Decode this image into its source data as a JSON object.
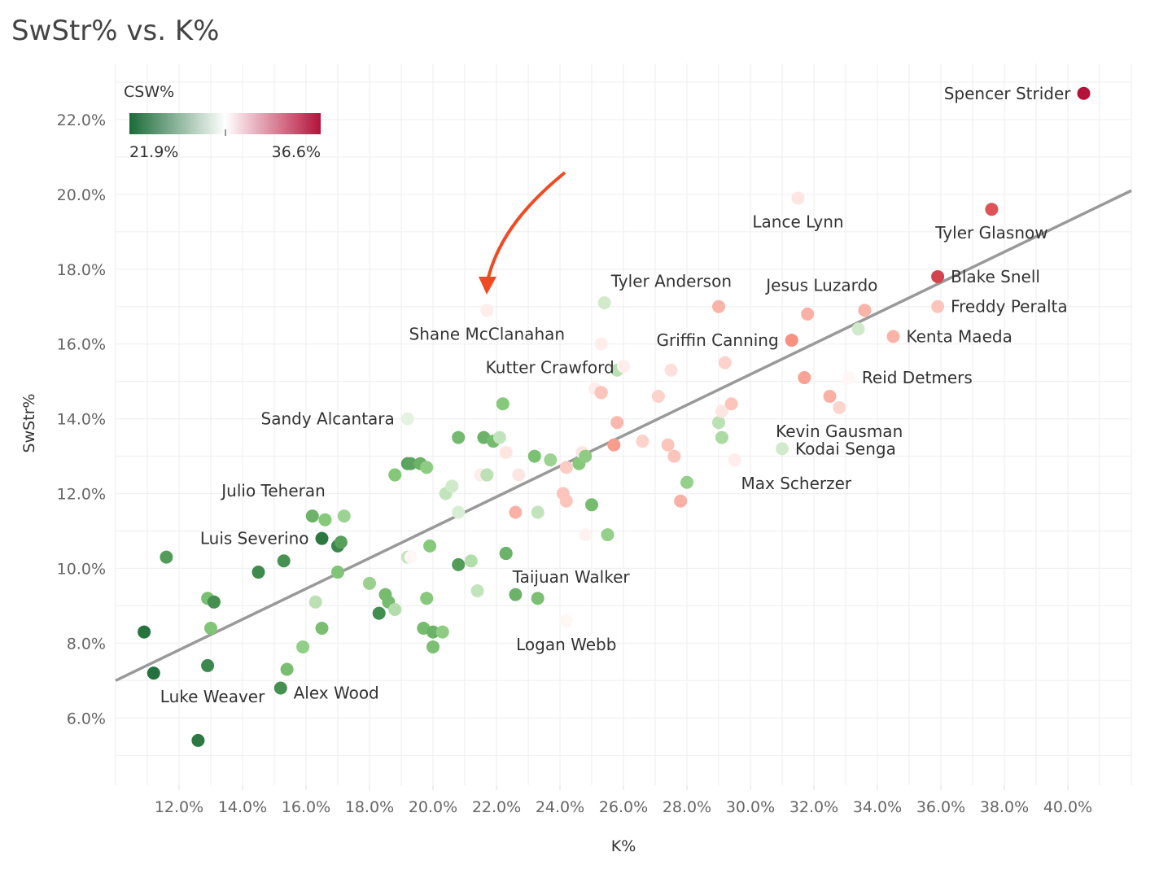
{
  "page_title": "SwStr% vs. K%",
  "chart_data": {
    "type": "scatter",
    "title": "SwStr% vs. K%",
    "xlabel": "K%",
    "ylabel": "SwStr%",
    "xlim": [
      10.0,
      42.0
    ],
    "ylim": [
      4.2,
      23.5
    ],
    "x_ticks": [
      12,
      14,
      16,
      18,
      20,
      22,
      24,
      26,
      28,
      30,
      32,
      34,
      36,
      38,
      40
    ],
    "x_tick_labels": [
      "12.0%",
      "14.0%",
      "16.0%",
      "18.0%",
      "20.0%",
      "22.0%",
      "24.0%",
      "26.0%",
      "28.0%",
      "30.0%",
      "32.0%",
      "34.0%",
      "36.0%",
      "38.0%",
      "40.0%"
    ],
    "y_ticks": [
      6,
      8,
      10,
      12,
      14,
      16,
      18,
      20,
      22
    ],
    "y_tick_labels": [
      "6.0%",
      "8.0%",
      "10.0%",
      "12.0%",
      "14.0%",
      "16.0%",
      "18.0%",
      "20.0%",
      "22.0%"
    ],
    "grid": true,
    "color_legend": {
      "title": "CSW%",
      "min_label": "21.9%",
      "max_label": "36.6%",
      "min": 21.9,
      "max": 36.6,
      "low_color": "#1b6b38",
      "mid_color": "#ffffff",
      "high_color": "#b5123a",
      "position": "top-left"
    },
    "trend_line": {
      "x": [
        10.0,
        42.0
      ],
      "y": [
        7.0,
        20.1
      ],
      "color": "#999999"
    },
    "annotation_arrow": {
      "target": "Shane McClanahan",
      "color": "#f04a23"
    },
    "labeled_points": [
      {
        "name": "Spencer Strider",
        "x": 40.5,
        "y": 22.7,
        "csw": 36.6,
        "side": "left"
      },
      {
        "name": "Lance Lynn",
        "x": 31.5,
        "y": 19.9,
        "csw": 30.0,
        "side": "below"
      },
      {
        "name": "Tyler Glasnow",
        "x": 37.6,
        "y": 19.6,
        "csw": 34.5,
        "side": "below"
      },
      {
        "name": "Blake Snell",
        "x": 35.9,
        "y": 17.8,
        "csw": 35.0,
        "side": "right"
      },
      {
        "name": "Freddy Peralta",
        "x": 35.9,
        "y": 17.0,
        "csw": 31.0,
        "side": "right"
      },
      {
        "name": "Tyler Anderson",
        "x": 29.0,
        "y": 17.0,
        "csw": 31.5,
        "side": "above-left"
      },
      {
        "name": "Jesus Luzardo",
        "x": 33.6,
        "y": 16.9,
        "csw": 31.5,
        "side": "above-left"
      },
      {
        "name": "Kenta Maeda",
        "x": 34.5,
        "y": 16.2,
        "csw": 31.5,
        "side": "right"
      },
      {
        "name": "Griffin Canning",
        "x": 31.3,
        "y": 16.1,
        "csw": 32.5,
        "side": "left"
      },
      {
        "name": "Shane McClanahan",
        "x": 21.7,
        "y": 16.9,
        "csw": 29.8,
        "side": "below"
      },
      {
        "name": "Kutter Crawford",
        "x": 25.3,
        "y": 14.7,
        "csw": 31.0,
        "side": "above-left"
      },
      {
        "name": "Reid Detmers",
        "x": 33.1,
        "y": 15.1,
        "csw": 29.5,
        "side": "right"
      },
      {
        "name": "Sandy Alcantara",
        "x": 19.2,
        "y": 14.0,
        "csw": 28.5,
        "side": "left"
      },
      {
        "name": "Kevin Gausman",
        "x": 32.8,
        "y": 14.3,
        "csw": 30.5,
        "side": "below"
      },
      {
        "name": "Kodai Senga",
        "x": 31.0,
        "y": 13.2,
        "csw": 28.0,
        "side": "right"
      },
      {
        "name": "Max Scherzer",
        "x": 29.5,
        "y": 12.9,
        "csw": 29.8,
        "side": "below-right"
      },
      {
        "name": "Julio Teheran",
        "x": 16.2,
        "y": 11.4,
        "csw": 25.0,
        "side": "above-left"
      },
      {
        "name": "Luis Severino",
        "x": 16.5,
        "y": 10.8,
        "csw": 22.5,
        "side": "left"
      },
      {
        "name": "Taijuan Walker",
        "x": 22.3,
        "y": 10.4,
        "csw": 25.0,
        "side": "below-right"
      },
      {
        "name": "Logan Webb",
        "x": 24.2,
        "y": 8.6,
        "csw": 29.5,
        "side": "below"
      },
      {
        "name": "Alex Wood",
        "x": 15.4,
        "y": 7.3,
        "csw": 25.5,
        "side": "below-right"
      },
      {
        "name": "Luke Weaver",
        "x": 11.2,
        "y": 7.2,
        "csw": 22.2,
        "side": "below-right"
      }
    ],
    "points": [
      {
        "x": 11.6,
        "y": 10.3,
        "csw": 24.0
      },
      {
        "x": 10.9,
        "y": 8.3,
        "csw": 22.3
      },
      {
        "x": 12.6,
        "y": 5.4,
        "csw": 22.5
      },
      {
        "x": 12.9,
        "y": 7.4,
        "csw": 23.2
      },
      {
        "x": 12.9,
        "y": 9.2,
        "csw": 25.5
      },
      {
        "x": 13.0,
        "y": 8.4,
        "csw": 25.8
      },
      {
        "x": 13.1,
        "y": 9.1,
        "csw": 23.5
      },
      {
        "x": 14.5,
        "y": 9.9,
        "csw": 23.3
      },
      {
        "x": 15.3,
        "y": 10.2,
        "csw": 23.6
      },
      {
        "x": 15.2,
        "y": 6.8,
        "csw": 23.5
      },
      {
        "x": 15.9,
        "y": 7.9,
        "csw": 26.3
      },
      {
        "x": 16.3,
        "y": 9.1,
        "csw": 27.4
      },
      {
        "x": 16.5,
        "y": 8.4,
        "csw": 25.5
      },
      {
        "x": 16.6,
        "y": 11.3,
        "csw": 26.0
      },
      {
        "x": 17.0,
        "y": 10.6,
        "csw": 23.1
      },
      {
        "x": 17.1,
        "y": 10.7,
        "csw": 24.2
      },
      {
        "x": 17.2,
        "y": 11.4,
        "csw": 26.6
      },
      {
        "x": 17.0,
        "y": 9.9,
        "csw": 25.8
      },
      {
        "x": 18.0,
        "y": 9.6,
        "csw": 26.5
      },
      {
        "x": 18.3,
        "y": 8.8,
        "csw": 23.4
      },
      {
        "x": 18.5,
        "y": 9.3,
        "csw": 25.4
      },
      {
        "x": 18.6,
        "y": 9.1,
        "csw": 25.4
      },
      {
        "x": 18.8,
        "y": 8.9,
        "csw": 27.2
      },
      {
        "x": 18.8,
        "y": 12.5,
        "csw": 25.9
      },
      {
        "x": 19.2,
        "y": 12.8,
        "csw": 24.3
      },
      {
        "x": 19.3,
        "y": 12.8,
        "csw": 24.4
      },
      {
        "x": 19.2,
        "y": 10.3,
        "csw": 27.6
      },
      {
        "x": 19.3,
        "y": 10.3,
        "csw": 29.5
      },
      {
        "x": 19.6,
        "y": 12.8,
        "csw": 25.0
      },
      {
        "x": 19.8,
        "y": 12.7,
        "csw": 26.2
      },
      {
        "x": 19.9,
        "y": 10.6,
        "csw": 26.0
      },
      {
        "x": 19.7,
        "y": 8.4,
        "csw": 25.4
      },
      {
        "x": 19.8,
        "y": 9.2,
        "csw": 26.0
      },
      {
        "x": 20.0,
        "y": 8.3,
        "csw": 25.0
      },
      {
        "x": 20.0,
        "y": 7.9,
        "csw": 25.6
      },
      {
        "x": 20.3,
        "y": 8.3,
        "csw": 26.2
      },
      {
        "x": 20.4,
        "y": 12.0,
        "csw": 27.6
      },
      {
        "x": 20.6,
        "y": 12.2,
        "csw": 28.0
      },
      {
        "x": 20.8,
        "y": 11.5,
        "csw": 28.2
      },
      {
        "x": 20.8,
        "y": 13.5,
        "csw": 25.3
      },
      {
        "x": 20.8,
        "y": 10.1,
        "csw": 24.0
      },
      {
        "x": 21.2,
        "y": 10.2,
        "csw": 27.2
      },
      {
        "x": 21.4,
        "y": 9.4,
        "csw": 27.6
      },
      {
        "x": 21.5,
        "y": 12.5,
        "csw": 29.8
      },
      {
        "x": 21.6,
        "y": 13.5,
        "csw": 25.0
      },
      {
        "x": 21.7,
        "y": 12.5,
        "csw": 27.4
      },
      {
        "x": 21.9,
        "y": 13.4,
        "csw": 25.4
      },
      {
        "x": 22.1,
        "y": 13.5,
        "csw": 27.6
      },
      {
        "x": 22.2,
        "y": 14.4,
        "csw": 26.0
      },
      {
        "x": 22.3,
        "y": 10.4,
        "csw": 24.8
      },
      {
        "x": 22.3,
        "y": 13.1,
        "csw": 30.0
      },
      {
        "x": 22.6,
        "y": 9.3,
        "csw": 25.0
      },
      {
        "x": 22.6,
        "y": 11.5,
        "csw": 31.6
      },
      {
        "x": 22.7,
        "y": 12.5,
        "csw": 30.0
      },
      {
        "x": 23.2,
        "y": 13.0,
        "csw": 25.6
      },
      {
        "x": 23.3,
        "y": 9.2,
        "csw": 25.6
      },
      {
        "x": 23.3,
        "y": 11.5,
        "csw": 27.6
      },
      {
        "x": 23.7,
        "y": 12.9,
        "csw": 26.6
      },
      {
        "x": 24.2,
        "y": 12.7,
        "csw": 30.8
      },
      {
        "x": 24.1,
        "y": 12.0,
        "csw": 31.0
      },
      {
        "x": 24.2,
        "y": 11.8,
        "csw": 31.0
      },
      {
        "x": 24.6,
        "y": 12.8,
        "csw": 26.0
      },
      {
        "x": 24.7,
        "y": 13.1,
        "csw": 30.0
      },
      {
        "x": 24.8,
        "y": 13.0,
        "csw": 26.2
      },
      {
        "x": 24.8,
        "y": 10.9,
        "csw": 29.6
      },
      {
        "x": 25.0,
        "y": 11.7,
        "csw": 25.4
      },
      {
        "x": 25.1,
        "y": 14.8,
        "csw": 29.8
      },
      {
        "x": 25.3,
        "y": 16.0,
        "csw": 29.8
      },
      {
        "x": 25.3,
        "y": 14.7,
        "csw": 32.0
      },
      {
        "x": 25.4,
        "y": 17.1,
        "csw": 28.0
      },
      {
        "x": 25.5,
        "y": 10.9,
        "csw": 26.4
      },
      {
        "x": 25.7,
        "y": 13.3,
        "csw": 32.2
      },
      {
        "x": 25.8,
        "y": 13.9,
        "csw": 31.4
      },
      {
        "x": 25.8,
        "y": 15.3,
        "csw": 27.4
      },
      {
        "x": 26.0,
        "y": 15.4,
        "csw": 29.8
      },
      {
        "x": 26.6,
        "y": 13.4,
        "csw": 30.6
      },
      {
        "x": 27.1,
        "y": 14.6,
        "csw": 30.6
      },
      {
        "x": 27.4,
        "y": 13.3,
        "csw": 31.0
      },
      {
        "x": 27.5,
        "y": 15.3,
        "csw": 30.2
      },
      {
        "x": 27.6,
        "y": 13.0,
        "csw": 31.0
      },
      {
        "x": 27.8,
        "y": 11.8,
        "csw": 31.6
      },
      {
        "x": 28.0,
        "y": 12.3,
        "csw": 26.4
      },
      {
        "x": 29.0,
        "y": 13.9,
        "csw": 27.4
      },
      {
        "x": 29.1,
        "y": 13.5,
        "csw": 27.0
      },
      {
        "x": 29.1,
        "y": 14.2,
        "csw": 30.0
      },
      {
        "x": 29.2,
        "y": 15.5,
        "csw": 30.6
      },
      {
        "x": 29.4,
        "y": 14.4,
        "csw": 31.0
      },
      {
        "x": 31.8,
        "y": 16.8,
        "csw": 31.6
      },
      {
        "x": 31.7,
        "y": 15.1,
        "csw": 32.0
      },
      {
        "x": 32.5,
        "y": 14.6,
        "csw": 31.6
      },
      {
        "x": 33.4,
        "y": 16.4,
        "csw": 28.0
      }
    ]
  }
}
